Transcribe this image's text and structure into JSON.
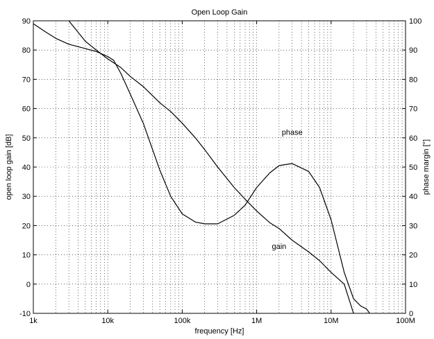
{
  "chart_data": {
    "type": "line",
    "title": "Open Loop Gain",
    "xlabel": "frequency [Hz]",
    "ylabel": "open loop gain [dB]",
    "y2label": "phase margin [°]",
    "x_scale": "log",
    "xlim": [
      1000,
      100000000
    ],
    "ylim": [
      -10,
      90
    ],
    "y2lim": [
      0,
      100
    ],
    "grid": true,
    "x_ticks": [
      {
        "value": 1000,
        "label": "1k"
      },
      {
        "value": 10000,
        "label": "10k"
      },
      {
        "value": 100000,
        "label": "100k"
      },
      {
        "value": 1000000,
        "label": "1M"
      },
      {
        "value": 10000000,
        "label": "10M"
      },
      {
        "value": 100000000,
        "label": "100M"
      }
    ],
    "y_ticks": [
      -10,
      0,
      10,
      20,
      30,
      40,
      50,
      60,
      70,
      80,
      90
    ],
    "y2_ticks": [
      0,
      10,
      20,
      30,
      40,
      50,
      60,
      70,
      80,
      90,
      100
    ],
    "series": [
      {
        "name": "gain",
        "axis": "left",
        "x": [
          1000,
          1500,
          2000,
          3000,
          5000,
          7000,
          10000,
          12000,
          15000,
          20000,
          30000,
          50000,
          70000,
          100000,
          150000,
          200000,
          300000,
          500000,
          700000,
          1000000,
          1500000,
          2000000,
          3000000,
          5000000,
          7000000,
          10000000,
          15000000,
          20000000,
          25000000,
          30000000,
          33000000
        ],
        "y": [
          89,
          86,
          84,
          82,
          80.5,
          79.5,
          77.8,
          76.5,
          72,
          65,
          55,
          39,
          30,
          24,
          21.2,
          20.6,
          20.6,
          23.5,
          27,
          33,
          38,
          40.5,
          41.2,
          38.5,
          33,
          22,
          4,
          -5,
          -7.5,
          -8.5,
          -10
        ]
      },
      {
        "name": "phase",
        "axis": "right",
        "x": [
          3000,
          5000,
          7000,
          10000,
          15000,
          20000,
          30000,
          50000,
          70000,
          100000,
          150000,
          200000,
          300000,
          500000,
          700000,
          1000000,
          1500000,
          2000000,
          3000000,
          5000000,
          7000000,
          10000000,
          15000000,
          20000000
        ],
        "y": [
          100,
          93,
          90,
          87,
          84,
          81,
          77.5,
          72,
          69,
          65,
          60,
          56,
          50,
          43,
          39,
          35,
          31,
          29,
          25,
          21,
          18,
          14,
          10,
          0
        ]
      }
    ],
    "annotations": [
      {
        "text": "phase",
        "x": 3000000,
        "y_right": 61
      },
      {
        "text": "gain",
        "x": 2000000,
        "y_right": 22
      }
    ]
  }
}
